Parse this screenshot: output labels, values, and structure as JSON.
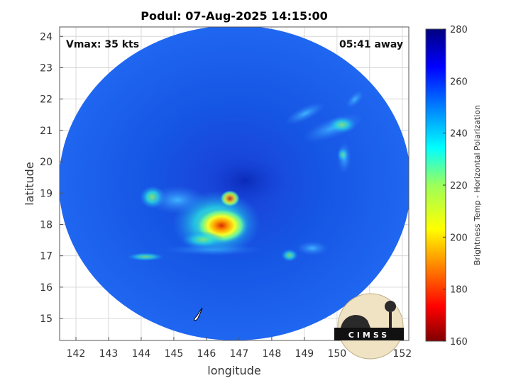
{
  "title": "Podul: 07-Aug-2025 14:15:00",
  "vmax_label": "Vmax: 35 kts",
  "time_away_label": "05:41 away",
  "logo_text": "CIMSS",
  "map": {
    "xlabel": "longitude",
    "ylabel": "latitude",
    "xlim": [
      141.5,
      152.2
    ],
    "ylim": [
      14.3,
      24.3
    ],
    "xticks": [
      "142",
      "143",
      "144",
      "145",
      "146",
      "147",
      "148",
      "149",
      "150",
      "151",
      "152"
    ],
    "yticks": [
      "15",
      "16",
      "17",
      "18",
      "19",
      "20",
      "21",
      "22",
      "23",
      "24"
    ],
    "swath_center": [
      146.85,
      19.2
    ],
    "grid": true
  },
  "colorbar": {
    "label": "Brightness Temp - Horizontal Polarization",
    "min": 160,
    "max": 280,
    "ticks": [
      "280",
      "260",
      "240",
      "220",
      "200",
      "180",
      "160"
    ],
    "colormap": "jet"
  },
  "colors": {
    "background_tb": "#1560e8",
    "cold_core": "#ff7a00",
    "frame": "#555555",
    "grid": "#d8d8d8"
  }
}
